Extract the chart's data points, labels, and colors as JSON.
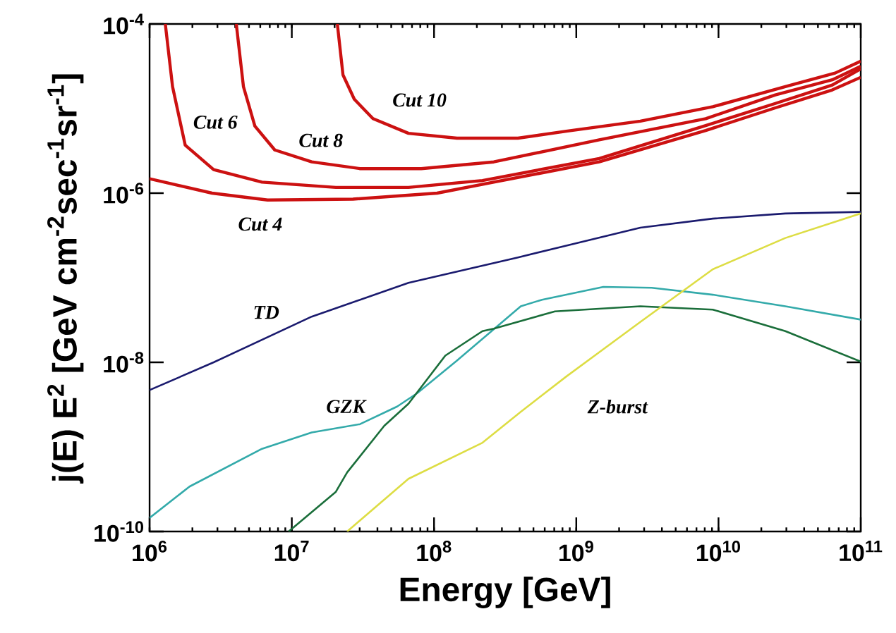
{
  "chart_data": {
    "type": "line",
    "xlabel": "Energy [GeV]",
    "ylabel": "j(E) E$^{2}$  [GeV cm$^{-2}$sec$^{-1}$sr$^{-1}$]",
    "log": "xy",
    "xlim": [
      1000000.0,
      100000000000.0
    ],
    "ylim": [
      1e-10,
      0.0001
    ],
    "xticks": [
      {
        "value": 1000000.0,
        "label": "10$^{6}$"
      },
      {
        "value": 10000000.0,
        "label": "10$^{7}$"
      },
      {
        "value": 100000000.0,
        "label": "10$^{8}$"
      },
      {
        "value": 1000000000.0,
        "label": "10$^{9}$"
      },
      {
        "value": 10000000000.0,
        "label": "10$^{10}$"
      },
      {
        "value": 100000000000.0,
        "label": "10$^{11}$"
      }
    ],
    "yticks": [
      {
        "value": 1e-10,
        "label": "10$^{-10}$"
      },
      {
        "value": 1e-08,
        "label": "10$^{-8}$"
      },
      {
        "value": 1e-06,
        "label": "10$^{-6}$"
      },
      {
        "value": 0.0001,
        "label": "10$^{-4}$"
      }
    ],
    "series": [
      {
        "name": "Cut 4",
        "color": "#cc1111",
        "x": [
          1000000.0,
          2750000.0,
          6760000.0,
          26900000.0,
          105000000.0,
          263000000.0,
          1450000000.0,
          8130000000.0,
          25100000000.0,
          63100000000.0,
          100000000000.0
        ],
        "values": [
          1.48e-06,
          1e-06,
          8.3e-07,
          8.5e-07,
          1e-06,
          1.35e-06,
          2.34e-06,
          5.5e-06,
          1.02e-05,
          1.66e-05,
          2.34e-05
        ]
      },
      {
        "name": "Cut 6",
        "color": "#cc1111",
        "x": [
          1290000.0,
          1450000.0,
          1780000.0,
          2820000.0,
          6170000.0,
          20400000.0,
          66100000.0,
          219000000.0,
          1450000000.0,
          8130000000.0,
          25100000000.0,
          63100000000.0,
          100000000000.0
        ],
        "values": [
          0.0001,
          1.82e-05,
          3.7e-06,
          1.9e-06,
          1.35e-06,
          1.17e-06,
          1.17e-06,
          1.41e-06,
          2.57e-06,
          6.3e-06,
          1.15e-05,
          1.9e-05,
          2.95e-05
        ]
      },
      {
        "name": "Cut 8",
        "color": "#cc1111",
        "x": [
          4070000.0,
          4570000.0,
          5500000.0,
          7590000.0,
          13800000.0,
          30200000.0,
          81300000.0,
          263000000.0,
          1450000000.0,
          8130000000.0,
          25100000000.0,
          63100000000.0,
          100000000000.0
        ],
        "values": [
          0.0001,
          1.82e-05,
          6.2e-06,
          3.24e-06,
          2.34e-06,
          1.95e-06,
          1.95e-06,
          2.34e-06,
          4.27e-06,
          7.6e-06,
          1.45e-05,
          2.19e-05,
          3.16e-05
        ]
      },
      {
        "name": "Cut 10",
        "color": "#cc1111",
        "x": [
          20900000.0,
          22900000.0,
          27500000.0,
          37200000.0,
          66100000.0,
          145000000.0,
          389000000.0,
          851000000.0,
          2820000000.0,
          9120000000.0,
          29500000000.0,
          66100000000.0,
          100000000000.0
        ],
        "values": [
          0.0001,
          2.5e-05,
          1.29e-05,
          7.6e-06,
          5.1e-06,
          4.47e-06,
          4.47e-06,
          5.4e-06,
          7.1e-06,
          1.05e-05,
          1.82e-05,
          2.63e-05,
          3.63e-05
        ]
      },
      {
        "name": "TD",
        "color": "#1a1a6e",
        "x": [
          1000000.0,
          2820000.0,
          13800000.0,
          66100000.0,
          389000000.0,
          851000000.0,
          2820000000.0,
          9120000000.0,
          29500000000.0,
          100000000000.0
        ],
        "values": [
          4.7e-09,
          1e-08,
          3.47e-08,
          8.7e-08,
          1.74e-07,
          2.4e-07,
          3.9e-07,
          5e-07,
          5.75e-07,
          6e-07
        ]
      },
      {
        "name": "GZK",
        "color": "#33aaaa",
        "x": [
          1000000.0,
          1910000.0,
          6170000.0,
          13800000.0,
          30200000.0,
          55000000.0,
          75900000.0,
          145000000.0,
          407000000.0,
          575000000.0,
          1550000000.0,
          3390000000.0,
          9120000000.0,
          29500000000.0,
          100000000000.0
        ],
        "values": [
          1.45e-10,
          3.4e-10,
          9.5e-10,
          1.48e-09,
          1.86e-09,
          3e-09,
          4.3e-09,
          1.05e-08,
          4.6e-08,
          5.5e-08,
          7.8e-08,
          7.6e-08,
          6.3e-08,
          4.6e-08,
          3.2e-08
        ]
      },
      {
        "color": "#1a6e3a",
        "x": [
          9500000.0,
          20400000.0,
          24500000.0,
          44700000.0,
          66100000.0,
          120000000.0,
          219000000.0,
          263000000.0,
          708000000.0,
          2820000000.0,
          9120000000.0,
          29500000000.0,
          100000000000.0
        ],
        "values": [
          1e-10,
          2.95e-10,
          5e-10,
          1.78e-09,
          3.24e-09,
          1.2e-08,
          2.34e-08,
          2.5e-08,
          4e-08,
          4.6e-08,
          4.2e-08,
          2.34e-08,
          1.02e-08
        ]
      },
      {
        "name": "Z-burst",
        "color": "#dddd44",
        "x": [
          24500000.0,
          66100000.0,
          219000000.0,
          407000000.0,
          851000000.0,
          2820000000.0,
          9120000000.0,
          29500000000.0,
          100000000000.0
        ],
        "values": [
          1e-10,
          4.2e-10,
          1.12e-09,
          2.6e-09,
          6.8e-09,
          3e-08,
          1.26e-07,
          2.95e-07,
          5.75e-07
        ]
      }
    ]
  }
}
